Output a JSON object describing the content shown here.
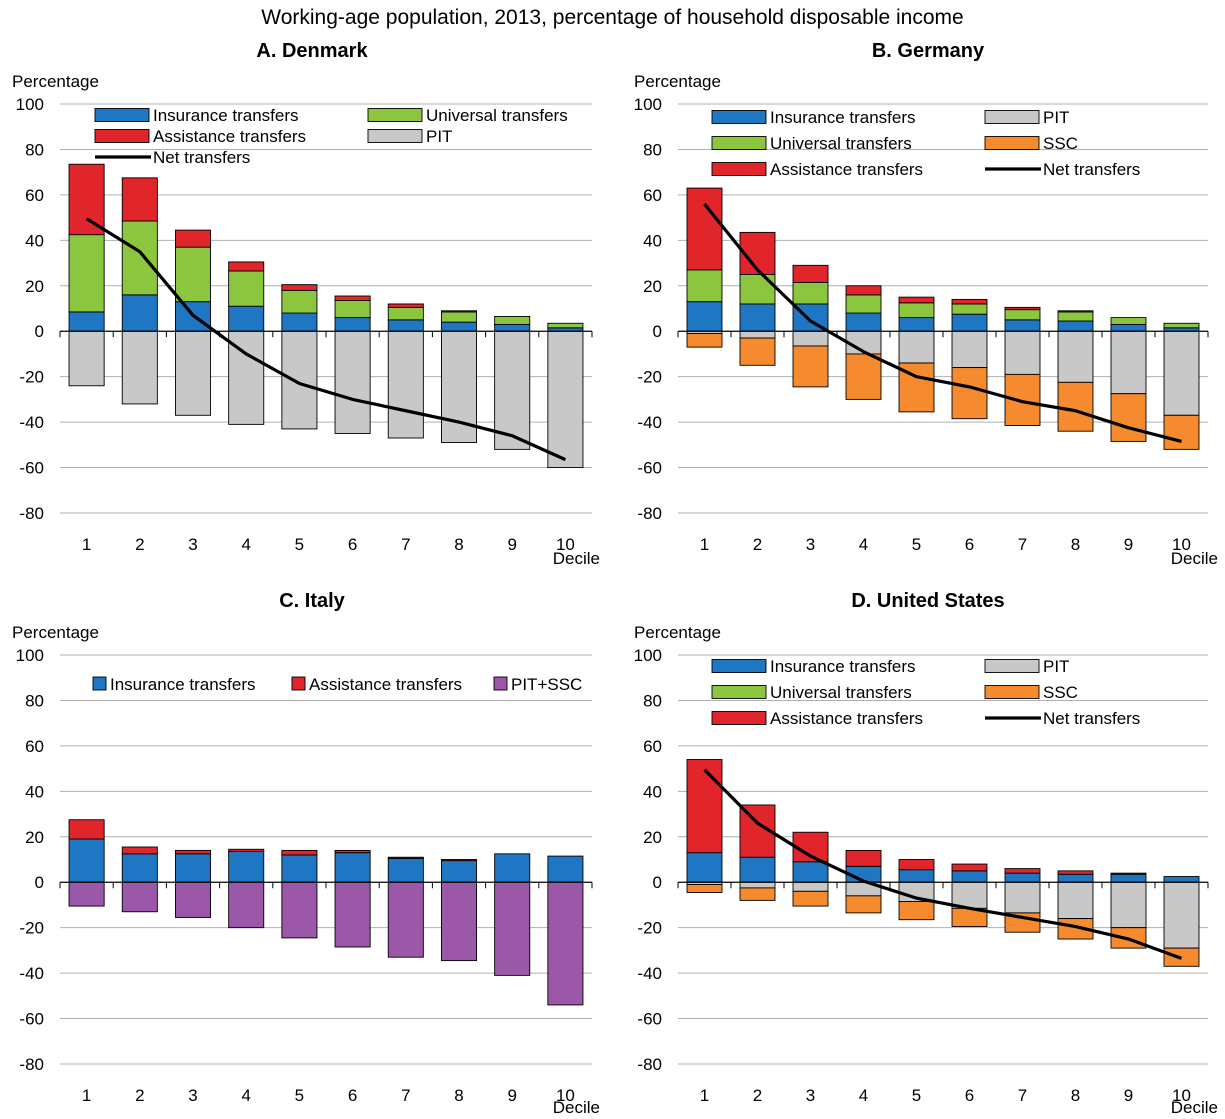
{
  "figure_title": "Working-age population, 2013, percentage of household disposable income",
  "colors": {
    "insurance": "#1f77c4",
    "universal": "#8cc63f",
    "assistance": "#e0262b",
    "pit": "#c8c8c8",
    "ssc": "#f58a2e",
    "pitssc": "#9b57a8",
    "net": "#000000"
  },
  "chart_data": [
    {
      "type": "bar",
      "title": "A. Denmark",
      "ylabel": "Percentage",
      "xlabel": "Decile",
      "ylim": [
        -80,
        100
      ],
      "yticks": [
        100,
        80,
        60,
        40,
        20,
        0,
        -20,
        -40,
        -60,
        -80
      ],
      "categories": [
        "1",
        "2",
        "3",
        "4",
        "5",
        "6",
        "7",
        "8",
        "9",
        "10"
      ],
      "series": [
        {
          "name": "Insurance transfers",
          "key": "insurance",
          "values": [
            8.5,
            16,
            13,
            11,
            8,
            6,
            5,
            4,
            3,
            1.5
          ]
        },
        {
          "name": "Universal transfers",
          "key": "universal",
          "values": [
            34,
            32.5,
            24,
            15.5,
            10,
            7.5,
            5.5,
            4.5,
            3.5,
            2
          ]
        },
        {
          "name": "Assistance transfers",
          "key": "assistance",
          "values": [
            31,
            19,
            7.5,
            4,
            2.5,
            2,
            1.5,
            0.5,
            0,
            0
          ]
        },
        {
          "name": "PIT",
          "key": "pit",
          "values": [
            -24,
            -32,
            -37,
            -41,
            -43,
            -45,
            -47,
            -49,
            -52,
            -60
          ]
        },
        {
          "name": "Net transfers",
          "key": "net",
          "type": "line",
          "values": [
            49.5,
            35,
            7,
            -10,
            -23,
            -30,
            -35,
            -40,
            -46,
            -56.5
          ]
        }
      ],
      "legend": [
        {
          "label": "Insurance transfers",
          "key": "insurance",
          "kind": "box"
        },
        {
          "label": "Universal transfers",
          "key": "universal",
          "kind": "box"
        },
        {
          "label": "Assistance transfers",
          "key": "assistance",
          "kind": "box"
        },
        {
          "label": "PIT",
          "key": "pit",
          "kind": "box"
        },
        {
          "label": "Net transfers",
          "key": "net",
          "kind": "line"
        }
      ]
    },
    {
      "type": "bar",
      "title": "B. Germany",
      "ylabel": "Percentage",
      "xlabel": "Decile",
      "ylim": [
        -80,
        100
      ],
      "yticks": [
        100,
        80,
        60,
        40,
        20,
        0,
        -20,
        -40,
        -60,
        -80
      ],
      "categories": [
        "1",
        "2",
        "3",
        "4",
        "5",
        "6",
        "7",
        "8",
        "9",
        "10"
      ],
      "series": [
        {
          "name": "Insurance transfers",
          "key": "insurance",
          "values": [
            13,
            12,
            12,
            8,
            6,
            7.5,
            5,
            4.5,
            3,
            1.5
          ]
        },
        {
          "name": "Universal transfers",
          "key": "universal",
          "values": [
            14,
            13,
            9.5,
            8,
            6.5,
            4.5,
            4.5,
            4,
            3,
            2
          ]
        },
        {
          "name": "Assistance transfers",
          "key": "assistance",
          "values": [
            36,
            18.5,
            7.5,
            4,
            2.5,
            2,
            1,
            0.5,
            0,
            0
          ]
        },
        {
          "name": "PIT",
          "key": "pit",
          "values": [
            -1,
            -3,
            -6.5,
            -10,
            -14,
            -16,
            -19,
            -22.5,
            -27.5,
            -37
          ]
        },
        {
          "name": "SSC",
          "key": "ssc",
          "values": [
            -6,
            -12,
            -18,
            -20,
            -21.5,
            -22.5,
            -22.5,
            -21.5,
            -21,
            -15
          ]
        },
        {
          "name": "Net transfers",
          "key": "net",
          "type": "line",
          "values": [
            56,
            27,
            4.5,
            -9,
            -20,
            -24.5,
            -31,
            -35,
            -42.5,
            -48.5
          ]
        }
      ],
      "legend": [
        {
          "label": "Insurance transfers",
          "key": "insurance",
          "kind": "box"
        },
        {
          "label": "PIT",
          "key": "pit",
          "kind": "box"
        },
        {
          "label": "Universal transfers",
          "key": "universal",
          "kind": "box"
        },
        {
          "label": "SSC",
          "key": "ssc",
          "kind": "box"
        },
        {
          "label": "Assistance transfers",
          "key": "assistance",
          "kind": "box"
        },
        {
          "label": "Net transfers",
          "key": "net",
          "kind": "line"
        }
      ]
    },
    {
      "type": "bar",
      "title": "C. Italy",
      "ylabel": "Percentage",
      "xlabel": "Decile",
      "ylim": [
        -80,
        100
      ],
      "yticks": [
        100,
        80,
        60,
        40,
        20,
        0,
        -20,
        -40,
        -60,
        -80
      ],
      "categories": [
        "1",
        "2",
        "3",
        "4",
        "5",
        "6",
        "7",
        "8",
        "9",
        "10"
      ],
      "series": [
        {
          "name": "Insurance transfers",
          "key": "insurance",
          "values": [
            19,
            12.5,
            12.5,
            13.5,
            12,
            13,
            10.5,
            9.5,
            12.5,
            11.5
          ]
        },
        {
          "name": "Assistance transfers",
          "key": "assistance",
          "values": [
            8.5,
            3,
            1.5,
            1,
            2,
            1,
            0.5,
            0.5,
            0,
            0
          ]
        },
        {
          "name": "PIT+SSC",
          "key": "pitssc",
          "values": [
            -10.5,
            -13,
            -15.5,
            -20,
            -24.5,
            -28.5,
            -33,
            -34.5,
            -41,
            -54
          ]
        }
      ],
      "legend": [
        {
          "label": "Insurance transfers",
          "key": "insurance",
          "kind": "box"
        },
        {
          "label": "Assistance transfers",
          "key": "assistance",
          "kind": "box"
        },
        {
          "label": "PIT+SSC",
          "key": "pitssc",
          "kind": "box"
        }
      ]
    },
    {
      "type": "bar",
      "title": "D. United States",
      "ylabel": "Percentage",
      "xlabel": "Decile",
      "ylim": [
        -80,
        100
      ],
      "yticks": [
        100,
        80,
        60,
        40,
        20,
        0,
        -20,
        -40,
        -60,
        -80
      ],
      "categories": [
        "1",
        "2",
        "3",
        "4",
        "5",
        "6",
        "7",
        "8",
        "9",
        "10"
      ],
      "series": [
        {
          "name": "Insurance transfers",
          "key": "insurance",
          "values": [
            13,
            11,
            9,
            7,
            5.5,
            5,
            4,
            3.5,
            3.5,
            2.5
          ]
        },
        {
          "name": "Universal transfers",
          "key": "universal",
          "values": [
            0,
            0,
            0,
            0,
            0,
            0,
            0,
            0,
            0,
            0
          ]
        },
        {
          "name": "Assistance transfers",
          "key": "assistance",
          "values": [
            41,
            23,
            13,
            7,
            4.5,
            3,
            2,
            1.5,
            0.5,
            0
          ]
        },
        {
          "name": "PIT",
          "key": "pit",
          "values": [
            -1,
            -2.5,
            -4,
            -6,
            -8.5,
            -11.5,
            -13.5,
            -16,
            -20,
            -29
          ]
        },
        {
          "name": "SSC",
          "key": "ssc",
          "values": [
            -3.5,
            -5.5,
            -6.5,
            -7.5,
            -8,
            -8,
            -8.5,
            -9,
            -9,
            -8
          ]
        },
        {
          "name": "Net transfers",
          "key": "net",
          "type": "line",
          "values": [
            49.5,
            26,
            11.5,
            0.5,
            -7,
            -11.5,
            -15.5,
            -19.5,
            -25,
            -33.5
          ]
        }
      ],
      "legend": [
        {
          "label": "Insurance transfers",
          "key": "insurance",
          "kind": "box"
        },
        {
          "label": "PIT",
          "key": "pit",
          "kind": "box"
        },
        {
          "label": "Universal transfers",
          "key": "universal",
          "kind": "box"
        },
        {
          "label": "SSC",
          "key": "ssc",
          "kind": "box"
        },
        {
          "label": "Assistance transfers",
          "key": "assistance",
          "kind": "box"
        },
        {
          "label": "Net transfers",
          "key": "net",
          "kind": "line"
        }
      ]
    }
  ]
}
